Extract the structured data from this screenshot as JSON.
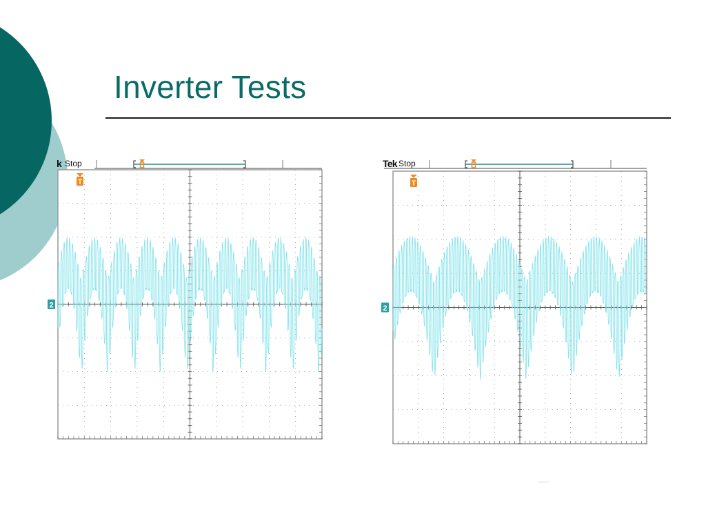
{
  "slide": {
    "title": "Inverter Tests",
    "colors": {
      "title": "#0a6a66",
      "deco_dark": "#066661",
      "deco_light": "#9fcdcd",
      "rule": "#1a1a1a",
      "trace": "#7fe3ea",
      "marker": "#f08a1c",
      "channel_badge": "#2a9fa6"
    }
  },
  "scopes": [
    {
      "brand": "k",
      "status": "Stop",
      "trigger_label": "T",
      "channel_label": "2",
      "chart_data": {
        "type": "line",
        "title": "",
        "xlabel": "",
        "ylabel": "",
        "x_divisions": 10,
        "y_divisions": 8,
        "grid": true,
        "ground_level_division": 4,
        "series": [
          {
            "color": "#7fe3ea",
            "cycles": 10,
            "positive_peak_div": 2.0,
            "negative_peak_div": -2.3,
            "envelope": "full-wave rectified sine hump with fine PWM carrier ripple"
          }
        ]
      }
    },
    {
      "brand": "Tek",
      "status": "Stop",
      "trigger_label": "T",
      "channel_label": "2",
      "chart_data": {
        "type": "line",
        "title": "",
        "xlabel": "",
        "ylabel": "",
        "x_divisions": 10,
        "y_divisions": 8,
        "grid": true,
        "ground_level_division": 4,
        "series": [
          {
            "color": "#7fe3ea",
            "cycles": 5.5,
            "positive_peak_div": 2.1,
            "negative_peak_div": -2.3,
            "envelope": "full-wave rectified sine hump with fine PWM carrier ripple"
          }
        ]
      }
    }
  ]
}
